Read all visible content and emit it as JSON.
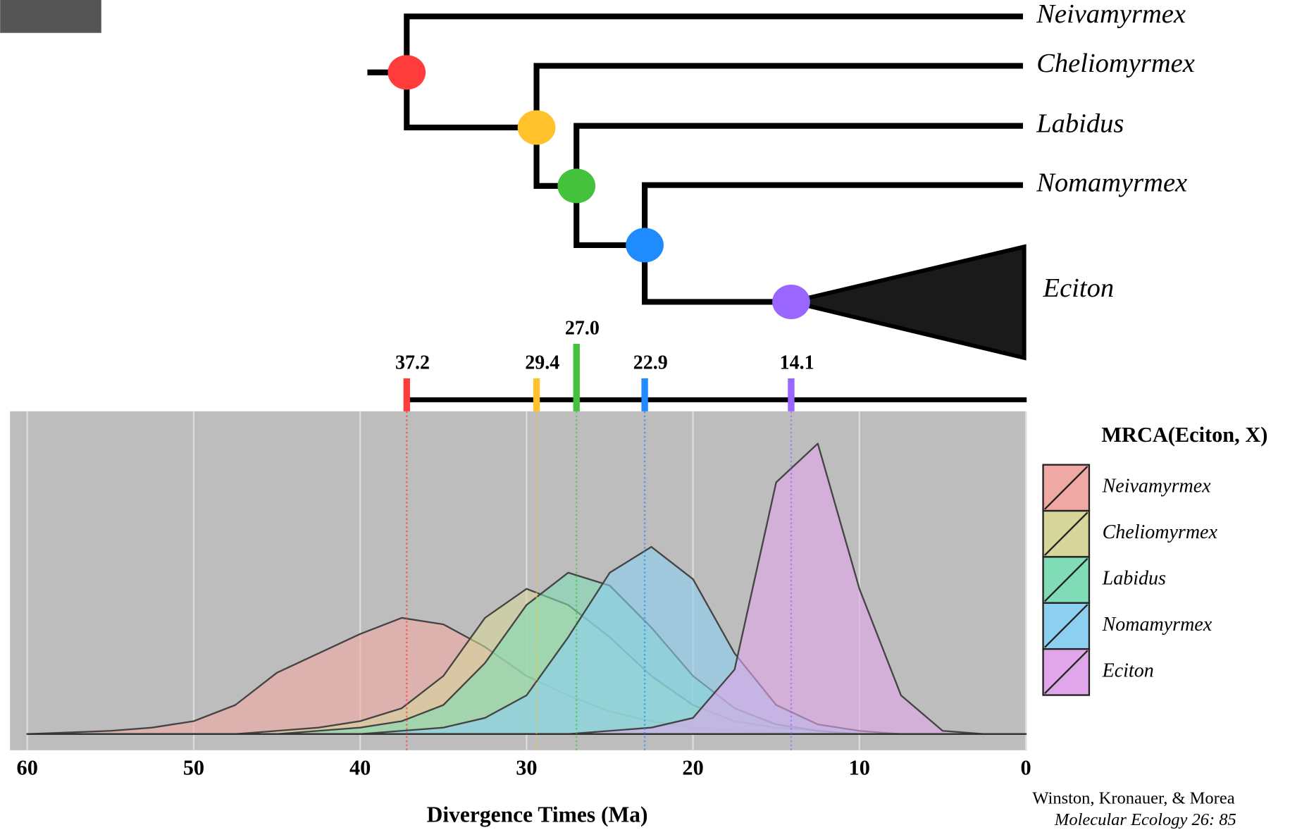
{
  "chart_data": {
    "type": "density",
    "xlabel": "Divergence Times (Ma)",
    "xlim": [
      60,
      0
    ],
    "xticks": [
      60,
      50,
      40,
      30,
      20,
      10,
      0
    ],
    "ylim": [
      -0.05,
      1
    ],
    "grid": true,
    "x": [
      60,
      57.5,
      55,
      52.5,
      50,
      47.5,
      45,
      42.5,
      40,
      37.5,
      35,
      32.5,
      30,
      27.5,
      25,
      22.5,
      20,
      17.5,
      15,
      12.5,
      10,
      7.5,
      5,
      2.5,
      0
    ],
    "series": [
      {
        "name": "Neivamyrmex",
        "color": "#f0a8a4",
        "values": [
          0,
          0.005,
          0.01,
          0.02,
          0.04,
          0.09,
          0.19,
          0.25,
          0.31,
          0.36,
          0.34,
          0.27,
          0.18,
          0.12,
          0.07,
          0.04,
          0.02,
          0.01,
          0.005,
          0,
          0,
          0,
          0,
          0,
          0
        ]
      },
      {
        "name": "Cheliomyrmex",
        "color": "#d6d69a",
        "values": [
          0,
          0,
          0,
          0,
          0,
          0,
          0.01,
          0.02,
          0.04,
          0.08,
          0.18,
          0.36,
          0.45,
          0.4,
          0.3,
          0.18,
          0.09,
          0.04,
          0.02,
          0.01,
          0,
          0,
          0,
          0,
          0
        ]
      },
      {
        "name": "Labidus",
        "color": "#80dcb6",
        "values": [
          0,
          0,
          0,
          0,
          0,
          0,
          0,
          0.01,
          0.02,
          0.04,
          0.09,
          0.22,
          0.4,
          0.5,
          0.46,
          0.33,
          0.18,
          0.08,
          0.03,
          0.01,
          0,
          0,
          0,
          0,
          0
        ]
      },
      {
        "name": "Nomamyrmex",
        "color": "#8ccff0",
        "values": [
          0,
          0,
          0,
          0,
          0,
          0,
          0,
          0,
          0,
          0.01,
          0.02,
          0.05,
          0.12,
          0.3,
          0.5,
          0.58,
          0.48,
          0.25,
          0.09,
          0.03,
          0.01,
          0,
          0,
          0,
          0
        ]
      },
      {
        "name": "Eciton",
        "color": "#e0a6ea",
        "values": [
          0,
          0,
          0,
          0,
          0,
          0,
          0,
          0,
          0,
          0,
          0,
          0,
          0,
          0,
          0.01,
          0.02,
          0.05,
          0.2,
          0.78,
          0.9,
          0.45,
          0.12,
          0.01,
          0,
          0
        ]
      }
    ],
    "legend_title": "MRCA(Eciton, X)",
    "node_ages": [
      37.2,
      29.4,
      27,
      22.9,
      14.1
    ],
    "node_age_labels": [
      "37.2",
      "29.4",
      "27.0",
      "22.9",
      "14.1"
    ],
    "node_colors": [
      "#ff3b3b",
      "#ffc22b",
      "#44c23c",
      "#1f8bff",
      "#9966ff"
    ],
    "tree_tips": [
      "Neivamyrmex",
      "Cheliomyrmex",
      "Labidus",
      "Nomamyrmex",
      "Eciton"
    ],
    "citation": [
      "Winston, Kronauer, & Morea",
      "Molecular Ecology 26: 85"
    ]
  }
}
